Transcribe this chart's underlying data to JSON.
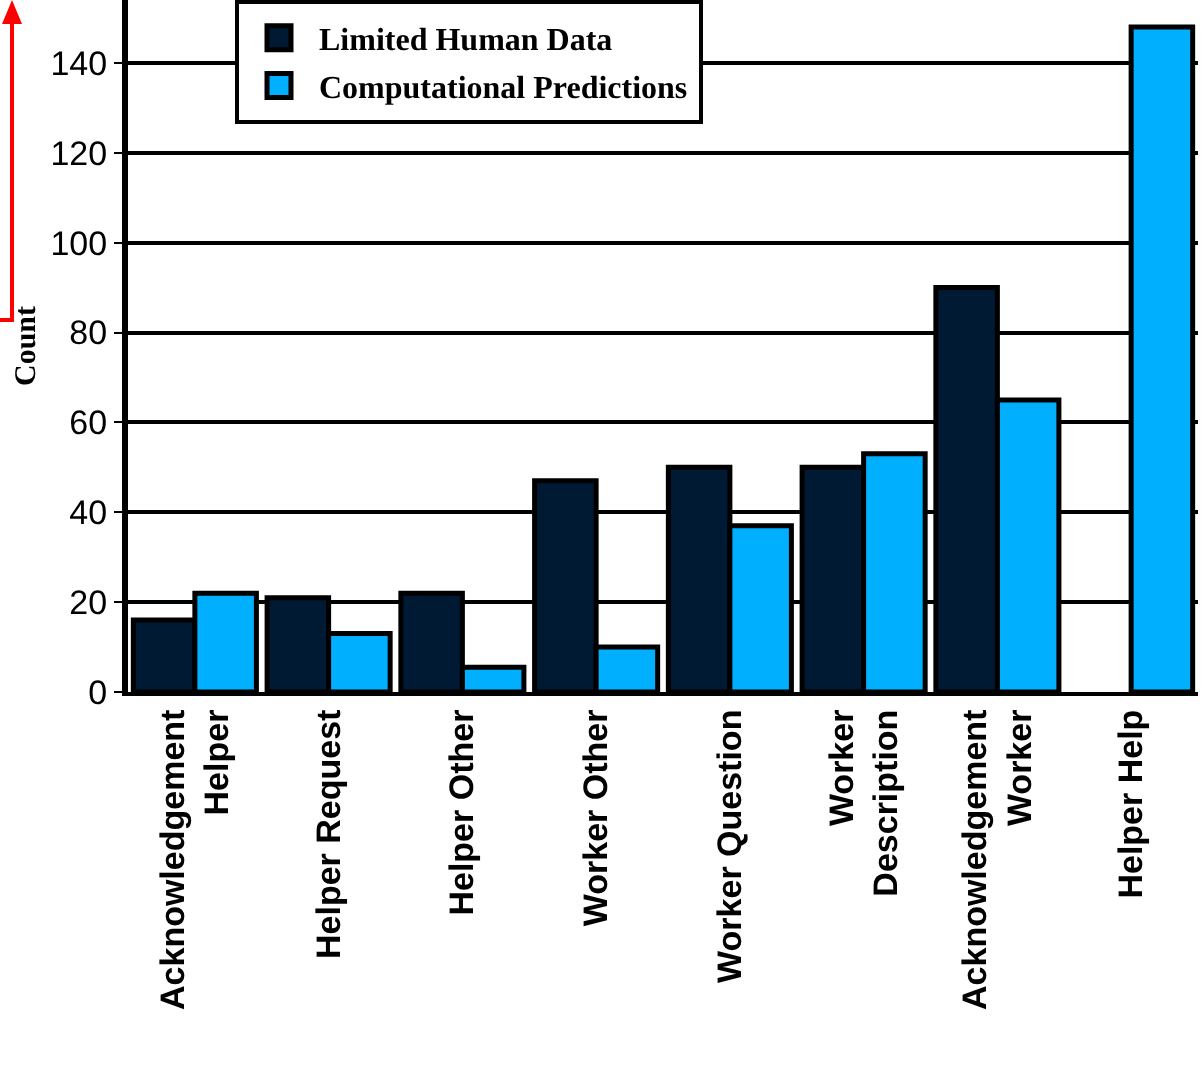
{
  "chart_data": {
    "type": "bar",
    "ylabel": "Count",
    "categories": [
      "Acknowledgement\nHelper",
      "Helper Request",
      "Helper Other",
      "Worker Other",
      "Worker Question",
      "Worker\nDescription",
      "Acknowledgement\nWorker",
      "Helper Help"
    ],
    "series": [
      {
        "name": "Limited Human Data",
        "color": "#001a33",
        "values": [
          16,
          21,
          22,
          47,
          50,
          50,
          90,
          null
        ]
      },
      {
        "name": "Computational Predictions",
        "color": "#00b0ff",
        "values": [
          22,
          13,
          5.5,
          10,
          37,
          53,
          65,
          148
        ]
      }
    ],
    "ylim": [
      0,
      154
    ],
    "yticks": [
      0,
      20,
      40,
      60,
      80,
      100,
      120,
      140
    ],
    "grid": "y",
    "legend": "top left"
  }
}
